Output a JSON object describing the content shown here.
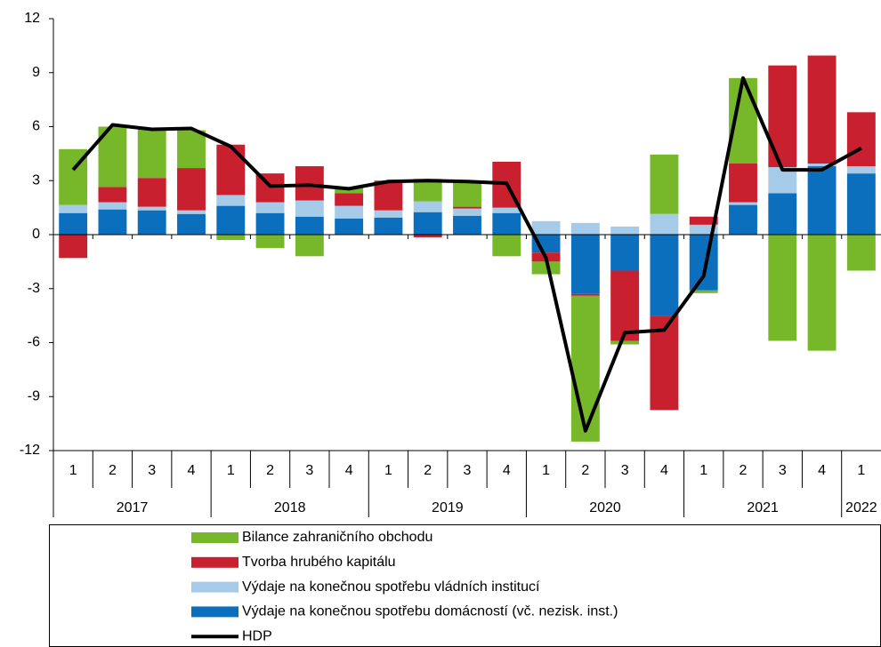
{
  "chart_data": {
    "type": "bar",
    "categories": [
      "1",
      "2",
      "3",
      "4",
      "1",
      "2",
      "3",
      "4",
      "1",
      "2",
      "3",
      "4",
      "1",
      "2",
      "3",
      "4",
      "1",
      "2",
      "3",
      "4",
      "1"
    ],
    "groups": [
      "2017",
      null,
      null,
      null,
      "2018",
      null,
      null,
      null,
      "2019",
      null,
      null,
      null,
      "2020",
      null,
      null,
      null,
      "2021",
      null,
      null,
      null,
      "2022"
    ],
    "ylim": [
      -12,
      12
    ],
    "yticks": [
      -12,
      -9,
      -6,
      -3,
      0,
      3,
      6,
      9,
      12
    ],
    "series": [
      {
        "name": "Výdaje na konečnou spotřebu domácností (vč. nezisk. inst.)",
        "color": "#0b6fbd",
        "values": [
          1.2,
          1.4,
          1.35,
          1.15,
          1.6,
          1.2,
          1.0,
          0.9,
          0.95,
          1.25,
          1.05,
          1.2,
          -1.0,
          -3.3,
          -2.0,
          -4.5,
          -3.1,
          1.65,
          2.3,
          3.8,
          3.4
        ]
      },
      {
        "name": "Výdaje na konečnou spotřebu vládních institucí",
        "color": "#a6cbe8",
        "values": [
          0.45,
          0.4,
          0.2,
          0.2,
          0.6,
          0.6,
          0.9,
          0.7,
          0.4,
          0.6,
          0.4,
          0.3,
          0.75,
          0.65,
          0.45,
          1.15,
          0.55,
          0.15,
          1.45,
          0.15,
          0.4
        ]
      },
      {
        "name": "Tvorba hrubého kapitálu",
        "color": "#c8202f",
        "values": [
          -1.3,
          0.85,
          1.6,
          2.35,
          2.8,
          1.6,
          1.9,
          0.7,
          1.65,
          -0.15,
          0.1,
          2.55,
          -0.5,
          -0.1,
          -3.9,
          -5.25,
          0.45,
          2.15,
          5.65,
          6.0,
          3.0
        ]
      },
      {
        "name": "Bilance zahraničního obchodu",
        "color": "#77b82a",
        "values": [
          3.1,
          3.35,
          2.7,
          2.1,
          -0.3,
          -0.75,
          -1.2,
          0.3,
          0,
          1.25,
          1.45,
          -1.2,
          -0.7,
          -8.1,
          -0.2,
          3.3,
          -0.15,
          4.75,
          -5.9,
          -6.45,
          -2.0
        ]
      },
      {
        "name": "HDP",
        "color": "#000000",
        "type": "line",
        "values": [
          3.6,
          6.1,
          5.85,
          5.9,
          4.9,
          2.7,
          2.75,
          2.55,
          2.95,
          3.0,
          2.95,
          2.85,
          -1.3,
          -10.9,
          -5.45,
          -5.3,
          -2.3,
          8.7,
          3.6,
          3.6,
          4.8
        ]
      }
    ],
    "legend_order": [
      3,
      2,
      1,
      0,
      4
    ]
  }
}
